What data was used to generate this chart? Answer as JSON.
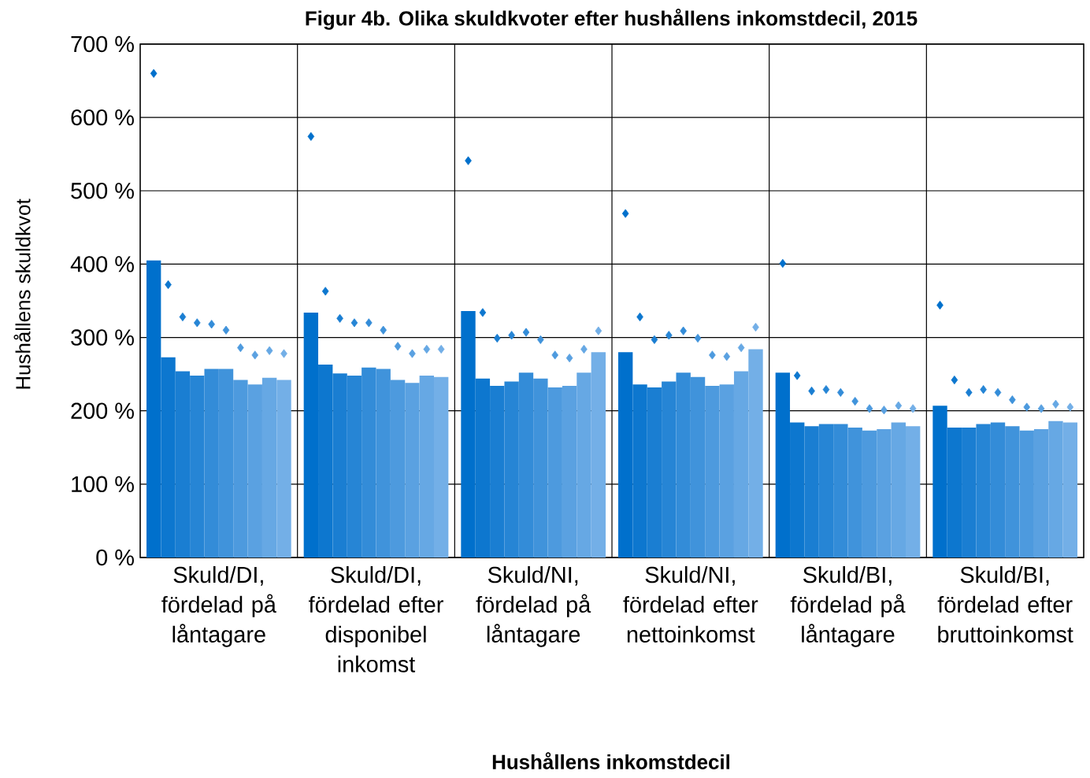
{
  "chart_data": {
    "type": "bar",
    "title": "Figur 4b. Olika skuldkvoter efter hushållens inkomstdecil, 2015",
    "xlabel": "Hushållens inkomstdecil",
    "ylabel": "Hushållens skuldkvot",
    "categories": [
      "Skuld/DI, fördelad på låntagare",
      "Skuld/DI, fördelad efter disponibel inkomst",
      "Skuld/NI, fördelad på låntagare",
      "Skuld/NI, fördelad efter nettoinkomst",
      "Skuld/BI, fördelad på låntagare",
      "Skuld/BI, fördelad efter bruttoinkomst"
    ],
    "ylim": [
      0,
      700
    ],
    "yticks": [
      {
        "value": 0,
        "label": "0 %"
      },
      {
        "value": 100,
        "label": "100 %"
      },
      {
        "value": 200,
        "label": "200 %"
      },
      {
        "value": 300,
        "label": "300 %"
      },
      {
        "value": 400,
        "label": "400 %"
      },
      {
        "value": 500,
        "label": "500 %"
      },
      {
        "value": 600,
        "label": "600 %"
      },
      {
        "value": 700,
        "label": "700 %"
      }
    ],
    "grid": true,
    "series": [
      {
        "color": "#0070cc",
        "values": [
          405,
          334,
          336,
          280,
          252,
          207
        ]
      },
      {
        "color": "#0d77cf",
        "values": [
          273,
          263,
          244,
          236,
          184,
          177
        ]
      },
      {
        "color": "#1a7ed2",
        "values": [
          254,
          251,
          234,
          232,
          179,
          177
        ]
      },
      {
        "color": "#2685d5",
        "values": [
          248,
          248,
          240,
          240,
          182,
          182
        ]
      },
      {
        "color": "#338cd8",
        "values": [
          257,
          259,
          252,
          252,
          182,
          184
        ]
      },
      {
        "color": "#4093db",
        "values": [
          257,
          257,
          244,
          246,
          177,
          179
        ]
      },
      {
        "color": "#4d9ade",
        "values": [
          242,
          242,
          232,
          234,
          173,
          173
        ]
      },
      {
        "color": "#5aa1e1",
        "values": [
          236,
          238,
          234,
          236,
          175,
          175
        ]
      },
      {
        "color": "#66a8e4",
        "values": [
          245,
          248,
          252,
          254,
          184,
          186
        ]
      },
      {
        "color": "#73afe7",
        "values": [
          242,
          246,
          280,
          284,
          179,
          184
        ]
      },
      {
        "type": "scatter",
        "marker": "diamond",
        "color": "#0070cc",
        "x": [
          "Skuld/DI, fördelad på låntagare",
          "Skuld/DI, fördelad efter disponibel inkomst",
          "Skuld/NI, fördelad på låntagare",
          "Skuld/NI, fördelad efter nettoinkomst",
          "Skuld/BI, fördelad på låntagare",
          "Skuld/BI, fördelad efter bruttoinkomst"
        ],
        "values": [
          660,
          574,
          541,
          469,
          401,
          344
        ]
      },
      {
        "type": "scatter",
        "marker": "diamond",
        "color": "#0d77cf",
        "x": [
          "Skuld/DI, fördelad på låntagare",
          "Skuld/DI, fördelad efter disponibel inkomst",
          "Skuld/NI, fördelad på låntagare",
          "Skuld/NI, fördelad efter nettoinkomst",
          "Skuld/BI, fördelad på låntagare",
          "Skuld/BI, fördelad efter bruttoinkomst"
        ],
        "values": [
          372,
          363,
          334,
          328,
          248,
          242
        ]
      },
      {
        "type": "scatter",
        "marker": "diamond",
        "color": "#1a7ed2",
        "x": [
          "Skuld/DI, fördelad på låntagare",
          "Skuld/DI, fördelad efter disponibel inkomst",
          "Skuld/NI, fördelad på låntagare",
          "Skuld/NI, fördelad efter nettoinkomst",
          "Skuld/BI, fördelad på låntagare",
          "Skuld/BI, fördelad efter bruttoinkomst"
        ],
        "values": [
          328,
          326,
          299,
          297,
          227,
          225
        ]
      },
      {
        "type": "scatter",
        "marker": "diamond",
        "color": "#2685d5",
        "x": [
          "Skuld/DI, fördelad på låntagare",
          "Skuld/DI, fördelad efter disponibel inkomst",
          "Skuld/NI, fördelad på låntagare",
          "Skuld/NI, fördelad efter nettoinkomst",
          "Skuld/BI, fördelad på låntagare",
          "Skuld/BI, fördelad efter bruttoinkomst"
        ],
        "values": [
          320,
          320,
          303,
          303,
          229,
          229
        ]
      },
      {
        "type": "scatter",
        "marker": "diamond",
        "color": "#338cd8",
        "x": [
          "Skuld/DI, fördelad på låntagare",
          "Skuld/DI, fördelad efter disponibel inkomst",
          "Skuld/NI, fördelad på låntagare",
          "Skuld/NI, fördelad efter nettoinkomst",
          "Skuld/BI, fördelad på låntagare",
          "Skuld/BI, fördelad efter bruttoinkomst"
        ],
        "values": [
          318,
          320,
          307,
          309,
          225,
          225
        ]
      },
      {
        "type": "scatter",
        "marker": "diamond",
        "color": "#4093db",
        "x": [
          "Skuld/DI, fördelad på låntagare",
          "Skuld/DI, fördelad efter disponibel inkomst",
          "Skuld/NI, fördelad på låntagare",
          "Skuld/NI, fördelad efter nettoinkomst",
          "Skuld/BI, fördelad på låntagare",
          "Skuld/BI, fördelad efter bruttoinkomst"
        ],
        "values": [
          310,
          310,
          297,
          299,
          213,
          215
        ]
      },
      {
        "type": "scatter",
        "marker": "diamond",
        "color": "#4d9ade",
        "x": [
          "Skuld/DI, fördelad på låntagare",
          "Skuld/DI, fördelad efter disponibel inkomst",
          "Skuld/NI, fördelad på låntagare",
          "Skuld/NI, fördelad efter nettoinkomst",
          "Skuld/BI, fördelad på låntagare",
          "Skuld/BI, fördelad efter bruttoinkomst"
        ],
        "values": [
          286,
          288,
          276,
          276,
          203,
          205
        ]
      },
      {
        "type": "scatter",
        "marker": "diamond",
        "color": "#5aa1e1",
        "x": [
          "Skuld/DI, fördelad på låntagare",
          "Skuld/DI, fördelad efter disponibel inkomst",
          "Skuld/NI, fördelad på låntagare",
          "Skuld/NI, fördelad efter nettoinkomst",
          "Skuld/BI, fördelad på låntagare",
          "Skuld/BI, fördelad efter bruttoinkomst"
        ],
        "values": [
          276,
          278,
          272,
          274,
          201,
          203
        ]
      },
      {
        "type": "scatter",
        "marker": "diamond",
        "color": "#66a8e4",
        "x": [
          "Skuld/DI, fördelad på låntagare",
          "Skuld/DI, fördelad efter disponibel inkomst",
          "Skuld/NI, fördelad på låntagare",
          "Skuld/NI, fördelad efter nettoinkomst",
          "Skuld/BI, fördelad på låntagare",
          "Skuld/BI, fördelad efter bruttoinkomst"
        ],
        "values": [
          282,
          284,
          284,
          286,
          207,
          209
        ]
      },
      {
        "type": "scatter",
        "marker": "diamond",
        "color": "#73afe7",
        "x": [
          "Skuld/DI, fördelad på låntagare",
          "Skuld/DI, fördelad efter disponibel inkomst",
          "Skuld/NI, fördelad på låntagare",
          "Skuld/NI, fördelad efter nettoinkomst",
          "Skuld/BI, fördelad på låntagare",
          "Skuld/BI, fördelad efter bruttoinkomst"
        ],
        "values": [
          278,
          284,
          309,
          314,
          203,
          205
        ]
      }
    ]
  }
}
